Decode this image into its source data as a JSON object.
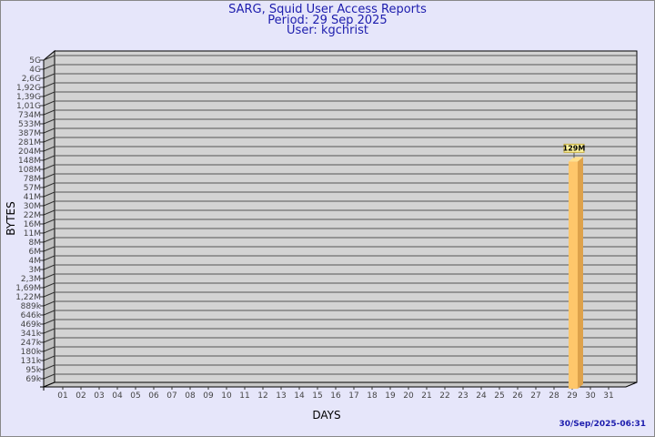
{
  "header": {
    "title": "SARG, Squid User Access Reports",
    "period": "Period: 29 Sep 2025",
    "user": "User: kgchrist"
  },
  "timestamp": "30/Sep/2025-06:31",
  "chart_data": {
    "type": "bar",
    "xlabel": "DAYS",
    "ylabel": "BYTES",
    "y_scale": "log",
    "y_ticks": [
      "5G",
      "4G",
      "2,6G",
      "1,92G",
      "1,39G",
      "1,01G",
      "734M",
      "533M",
      "387M",
      "281M",
      "204M",
      "148M",
      "108M",
      "78M",
      "57M",
      "41M",
      "30M",
      "22M",
      "16M",
      "11M",
      "8M",
      "6M",
      "4M",
      "3M",
      "2,3M",
      "1,69M",
      "1,22M",
      "889k",
      "646k",
      "469k",
      "341k",
      "247k",
      "180k",
      "131k",
      "95k",
      "69k"
    ],
    "y_tick_values": [
      5000000000.0,
      4000000000.0,
      2600000000.0,
      1920000000.0,
      1390000000.0,
      1010000000.0,
      734000000.0,
      533000000.0,
      387000000.0,
      281000000.0,
      204000000.0,
      148000000.0,
      108000000.0,
      78000000.0,
      57000000.0,
      41000000.0,
      30000000.0,
      22000000.0,
      16000000.0,
      11000000.0,
      8000000.0,
      6000000.0,
      4000000.0,
      3000000.0,
      2300000.0,
      1690000.0,
      1220000.0,
      889000.0,
      646000.0,
      469000.0,
      341000.0,
      247000.0,
      180000.0,
      131000.0,
      95000.0,
      69000.0
    ],
    "categories": [
      "01",
      "02",
      "03",
      "04",
      "05",
      "06",
      "07",
      "08",
      "09",
      "10",
      "11",
      "12",
      "13",
      "14",
      "15",
      "16",
      "17",
      "18",
      "19",
      "20",
      "21",
      "22",
      "23",
      "24",
      "25",
      "26",
      "27",
      "28",
      "29",
      "30",
      "31"
    ],
    "bars": [
      {
        "category": "29",
        "value": 129000000,
        "label": "129M"
      }
    ],
    "grid": true,
    "colors": {
      "bar": "#ffc76b",
      "bar_side": "#dea24b",
      "bar_top": "#ffe08e",
      "wall": "#d3d3d3",
      "label_bg": "#fff5a0"
    }
  }
}
